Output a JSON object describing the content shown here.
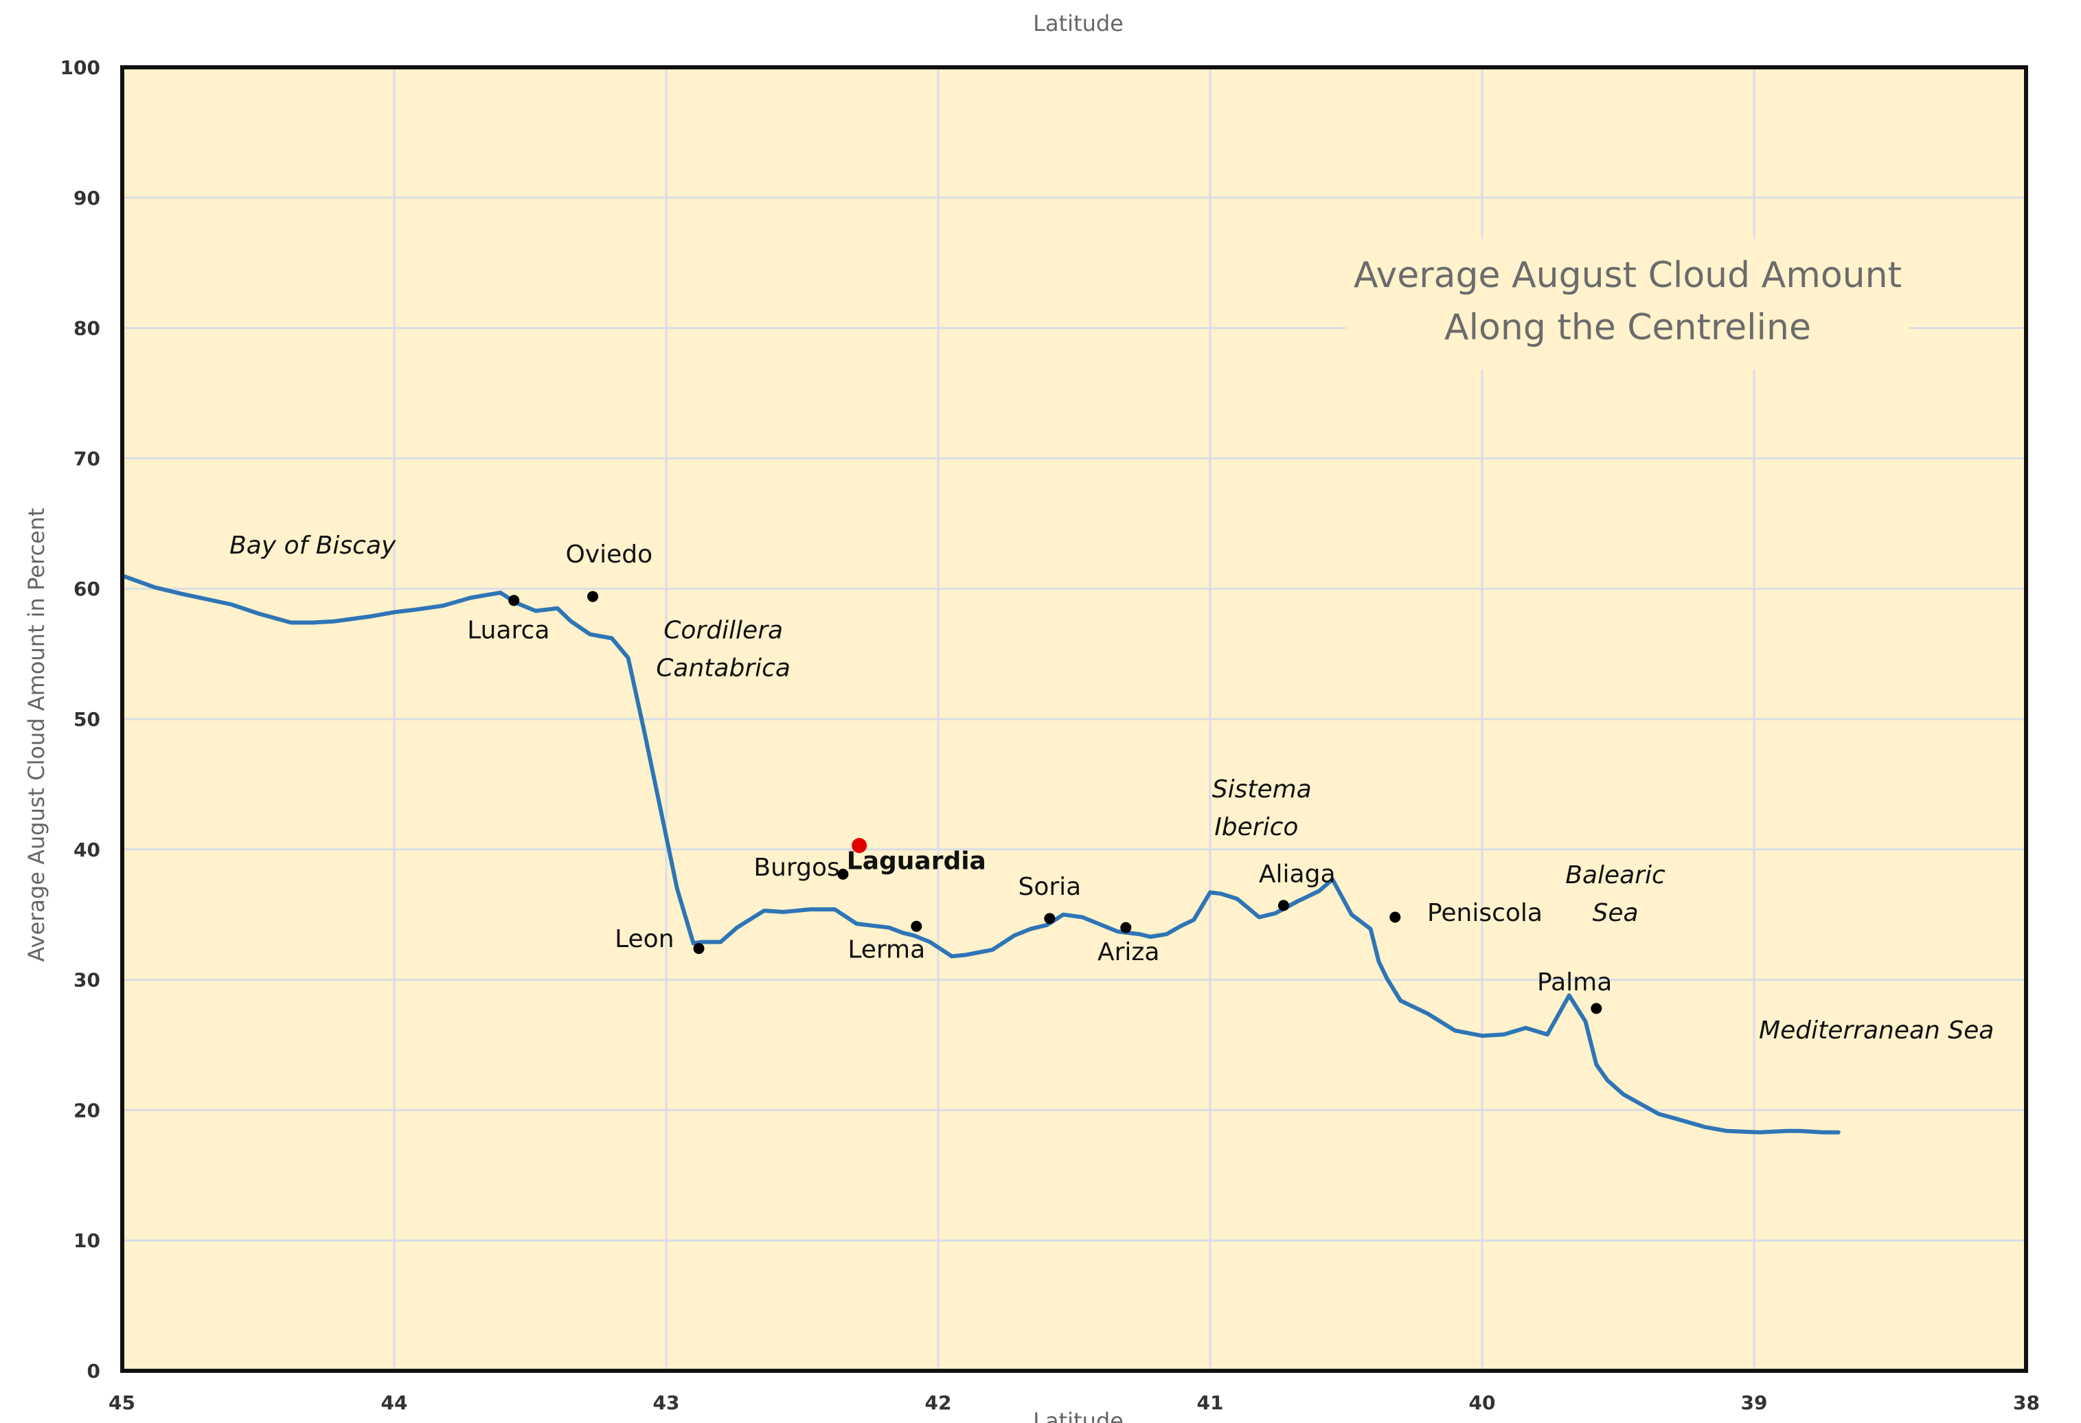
{
  "chart_data": {
    "type": "line",
    "title": [
      "Average August Cloud Amount",
      "Along the Centreline"
    ],
    "xlabel": "Latitude",
    "xlabel_top": "Latitude",
    "ylabel": "Average August Cloud Amount in Percent",
    "xlim": [
      45,
      38
    ],
    "x_reversed": true,
    "ylim": [
      0,
      100
    ],
    "x_ticks": [
      "45",
      "44",
      "43",
      "42",
      "41",
      "40",
      "39",
      "38"
    ],
    "y_ticks": [
      "0",
      "10",
      "20",
      "30",
      "40",
      "50",
      "60",
      "70",
      "80",
      "90",
      "100"
    ],
    "grid": true,
    "background": "#fff2cc",
    "line_color": "#2e75b6",
    "series": [
      {
        "x": [
          45.0,
          44.88,
          44.78,
          44.6,
          44.5,
          44.38,
          44.3,
          44.22,
          44.08,
          44.0,
          43.92,
          43.82,
          43.72,
          43.61,
          43.55,
          43.48,
          43.4,
          43.35,
          43.28,
          43.2,
          43.14,
          43.08,
          43.02,
          42.96,
          42.9,
          42.87,
          42.8,
          42.74,
          42.64,
          42.57,
          42.47,
          42.38,
          42.3,
          42.18,
          42.13,
          42.09,
          42.03,
          41.95,
          41.9,
          41.8,
          41.72,
          41.66,
          41.6,
          41.54,
          41.47,
          41.34,
          41.26,
          41.22,
          41.16,
          41.11,
          41.06,
          41.0,
          40.96,
          40.9,
          40.82,
          40.76,
          40.68,
          40.6,
          40.55,
          40.48,
          40.41,
          40.38,
          40.35,
          40.3,
          40.2,
          40.1,
          40.0,
          39.92,
          39.84,
          39.76,
          39.68,
          39.62,
          39.58,
          39.54,
          39.48,
          39.42,
          39.35,
          39.28,
          39.18,
          39.1,
          38.98,
          38.88,
          38.83,
          38.75,
          38.69
        ],
        "y": [
          61.0,
          60.1,
          59.6,
          58.8,
          58.1,
          57.4,
          57.4,
          57.5,
          57.9,
          58.2,
          58.4,
          58.7,
          59.3,
          59.7,
          58.9,
          58.3,
          58.5,
          57.5,
          56.5,
          56.2,
          54.7,
          49.0,
          43.0,
          37.0,
          32.8,
          32.9,
          32.9,
          34.0,
          35.3,
          35.2,
          35.4,
          35.4,
          34.3,
          34.0,
          33.6,
          33.4,
          32.9,
          31.8,
          31.9,
          32.3,
          33.4,
          33.9,
          34.2,
          35.0,
          34.8,
          33.7,
          33.5,
          33.3,
          33.5,
          34.1,
          34.6,
          36.7,
          36.6,
          36.2,
          34.8,
          35.1,
          36.0,
          36.8,
          37.7,
          35.0,
          33.9,
          31.4,
          30.1,
          28.4,
          27.4,
          26.1,
          25.7,
          25.8,
          26.3,
          25.8,
          28.8,
          26.8,
          23.5,
          22.3,
          21.2,
          20.5,
          19.7,
          19.3,
          18.7,
          18.4,
          18.3,
          18.4,
          18.4,
          18.3,
          18.3
        ]
      }
    ],
    "annotations": [
      {
        "text": "Bay of Biscay",
        "x": 44.3,
        "y": 62.7,
        "style": "italic"
      },
      {
        "text": "Oviedo",
        "x": 43.21,
        "y": 62.0,
        "style": "normal"
      },
      {
        "text": "Luarca",
        "x": 43.58,
        "y": 56.2,
        "style": "normal"
      },
      {
        "text": "Cordillera",
        "x": 42.79,
        "y": 56.2,
        "style": "italic"
      },
      {
        "text": "Cantabrica",
        "x": 42.79,
        "y": 53.3,
        "style": "italic"
      },
      {
        "text": "Leon",
        "x": 43.08,
        "y": 32.5,
        "style": "normal"
      },
      {
        "text": "Burgos",
        "x": 42.52,
        "y": 38.0,
        "style": "normal"
      },
      {
        "text": "Laguardia",
        "x": 42.08,
        "y": 38.5,
        "style": "bold",
        "color": "#e00000"
      },
      {
        "text": "Lerma",
        "x": 42.19,
        "y": 31.7,
        "style": "normal"
      },
      {
        "text": "Soria",
        "x": 41.59,
        "y": 36.5,
        "style": "normal"
      },
      {
        "text": "Ariza",
        "x": 41.3,
        "y": 31.5,
        "style": "normal"
      },
      {
        "text": "Sistema",
        "x": 40.81,
        "y": 44.0,
        "style": "italic"
      },
      {
        "text": "Iberico",
        "x": 40.83,
        "y": 41.1,
        "style": "italic"
      },
      {
        "text": "Aliaga",
        "x": 40.68,
        "y": 37.5,
        "style": "normal"
      },
      {
        "text": "Peniscola",
        "x": 39.99,
        "y": 34.5,
        "style": "normal"
      },
      {
        "text": "Balearic",
        "x": 39.51,
        "y": 37.4,
        "style": "italic"
      },
      {
        "text": "Sea",
        "x": 39.51,
        "y": 34.5,
        "style": "italic"
      },
      {
        "text": "Palma",
        "x": 39.66,
        "y": 29.2,
        "style": "normal"
      },
      {
        "text": "Mediterranean Sea",
        "x": 38.55,
        "y": 25.5,
        "style": "italic"
      }
    ],
    "markers": [
      {
        "name": "Oviedo",
        "x": 43.27,
        "y": 59.4,
        "color": "#000000"
      },
      {
        "name": "Luarca",
        "x": 43.56,
        "y": 59.1,
        "color": "#000000"
      },
      {
        "name": "Leon",
        "x": 42.88,
        "y": 32.4,
        "color": "#000000"
      },
      {
        "name": "Burgos",
        "x": 42.35,
        "y": 38.1,
        "color": "#000000"
      },
      {
        "name": "Laguardia",
        "x": 42.29,
        "y": 40.3,
        "color": "#e00000"
      },
      {
        "name": "Lerma",
        "x": 42.08,
        "y": 34.1,
        "color": "#000000"
      },
      {
        "name": "Soria",
        "x": 41.59,
        "y": 34.7,
        "color": "#000000"
      },
      {
        "name": "Ariza",
        "x": 41.31,
        "y": 34.0,
        "color": "#000000"
      },
      {
        "name": "Aliaga",
        "x": 40.73,
        "y": 35.7,
        "color": "#000000"
      },
      {
        "name": "Peniscola",
        "x": 40.32,
        "y": 34.8,
        "color": "#000000"
      },
      {
        "name": "Palma",
        "x": 39.58,
        "y": 27.8,
        "color": "#000000"
      }
    ]
  }
}
